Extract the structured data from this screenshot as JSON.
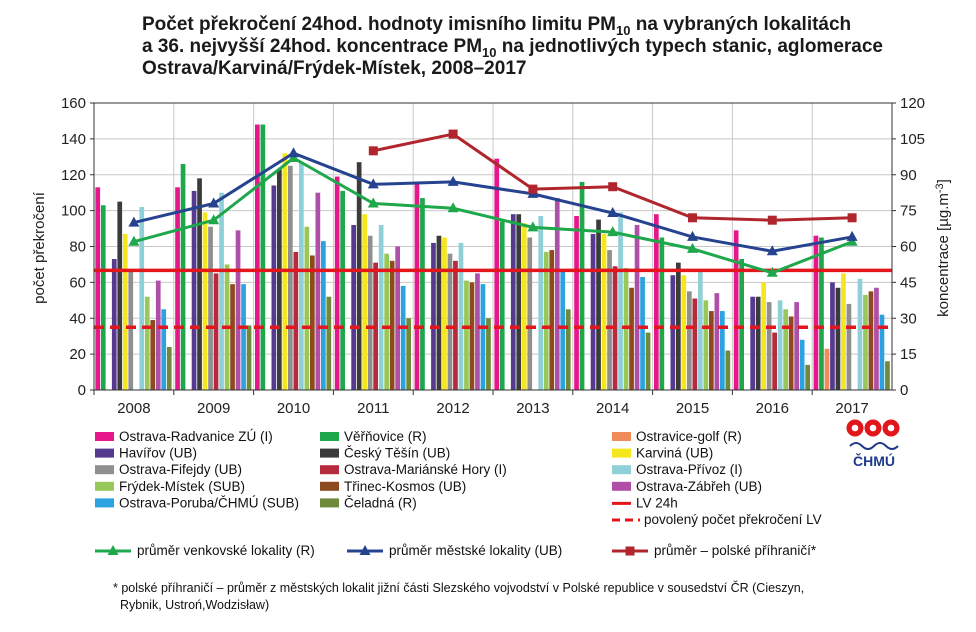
{
  "chart_data": {
    "type": "bar",
    "title_lines": [
      [
        "Počet překročení 24hod. hodnoty imisního limitu PM",
        "10",
        " na vybraných lokalitách"
      ],
      [
        "a 36. nejvyšší 24hod. koncentrace PM",
        "10",
        " na jednotlivých typech stanic, aglomerace"
      ],
      [
        "Ostrava/Karviná/Frýdek-Místek, 2008–2017",
        "",
        ""
      ]
    ],
    "ylabel": "počet překročení",
    "y2label": "koncentrace [µg.m-3]",
    "ylim": [
      0,
      160
    ],
    "y2lim": [
      0,
      120
    ],
    "yticks": [
      "0",
      "20",
      "40",
      "60",
      "80",
      "100",
      "120",
      "140",
      "160"
    ],
    "y2ticks": [
      "0",
      "15",
      "30",
      "45",
      "60",
      "75",
      "90",
      "105",
      "120"
    ],
    "categories": [
      "2008",
      "2009",
      "2010",
      "2011",
      "2012",
      "2013",
      "2014",
      "2015",
      "2016",
      "2017"
    ],
    "grid": true,
    "series": [
      {
        "name": "Ostrava-Radvanice ZÚ (I)",
        "color": "#e6178a",
        "values": [
          113,
          113,
          148,
          119,
          116,
          129,
          97,
          98,
          89,
          86
        ]
      },
      {
        "name": "Věřňovice (R)",
        "color": "#1ea84b",
        "values": [
          103,
          126,
          148,
          111,
          107,
          94,
          116,
          85,
          73,
          85
        ]
      },
      {
        "name": "Ostravice-golf (R)",
        "color": "#f28b5a",
        "values": [
          null,
          null,
          null,
          null,
          null,
          null,
          null,
          null,
          null,
          23
        ]
      },
      {
        "name": "Havířov (UB)",
        "color": "#553a8f",
        "values": [
          73,
          111,
          114,
          92,
          82,
          98,
          87,
          64,
          52,
          60
        ]
      },
      {
        "name": "Český Těšín (UB)",
        "color": "#3b3b3b",
        "values": [
          105,
          118,
          123,
          127,
          86,
          98,
          95,
          71,
          52,
          57
        ]
      },
      {
        "name": "Karviná (UB)",
        "color": "#f5e61e",
        "values": [
          87,
          99,
          132,
          98,
          85,
          93,
          87,
          64,
          60,
          65
        ]
      },
      {
        "name": "Ostrava-Fifejdy (UB)",
        "color": "#8f8f8f",
        "values": [
          66,
          91,
          125,
          86,
          76,
          85,
          78,
          55,
          49,
          48
        ]
      },
      {
        "name": "Ostrava-Mariánské Hory (I)",
        "color": "#b52a3c",
        "values": [
          null,
          65,
          77,
          71,
          72,
          null,
          69,
          51,
          32,
          null
        ]
      },
      {
        "name": "Ostrava-Přívoz (I)",
        "color": "#8fd0d8",
        "values": [
          102,
          110,
          127,
          92,
          82,
          97,
          99,
          66,
          50,
          62
        ]
      },
      {
        "name": "Frýdek-Místek (SUB)",
        "color": "#98c85a",
        "values": [
          52,
          70,
          91,
          76,
          61,
          77,
          68,
          50,
          45,
          53
        ]
      },
      {
        "name": "Třinec-Kosmos (UB)",
        "color": "#8b4b1f",
        "values": [
          39,
          59,
          75,
          72,
          60,
          78,
          57,
          44,
          41,
          55
        ]
      },
      {
        "name": "Ostrava-Zábřeh (UB)",
        "color": "#b04fa8",
        "values": [
          61,
          89,
          110,
          80,
          65,
          107,
          92,
          54,
          49,
          57
        ]
      },
      {
        "name": "Ostrava-Poruba/ČHMÚ (SUB)",
        "color": "#2aa3e0",
        "values": [
          45,
          59,
          83,
          58,
          59,
          66,
          63,
          44,
          28,
          42
        ]
      },
      {
        "name": "Čeladná (R)",
        "color": "#6e8a3a",
        "values": [
          24,
          36,
          52,
          40,
          40,
          45,
          32,
          22,
          14,
          16
        ]
      }
    ],
    "limit_lines": [
      {
        "name": "LV 24h",
        "color": "#e3161b",
        "style": "solid",
        "y2_value": 50
      },
      {
        "name": "povolený počet překročení LV",
        "color": "#e3161b",
        "style": "dashed",
        "y_value": 35
      }
    ],
    "line_series": [
      {
        "name": "průměr venkovské lokality (R)",
        "color": "#1ea84b",
        "marker": "triangle",
        "y2_values": [
          62,
          71,
          97,
          78,
          76,
          68,
          66,
          59,
          49,
          62
        ]
      },
      {
        "name": "průměr městské lokality (UB)",
        "color": "#25438f",
        "marker": "triangle",
        "y2_values": [
          70,
          78,
          99,
          86,
          87,
          82,
          74,
          64,
          58,
          64
        ]
      },
      {
        "name": "průměr – polské příhraničí*",
        "color": "#b0262c",
        "marker": "square",
        "y2_values": [
          null,
          null,
          null,
          100,
          107,
          84,
          85,
          72,
          71,
          72
        ]
      }
    ],
    "footnote_lines": [
      "* polské příhraničí – průměr z městských lokalit jižní části Slezského vojvodství v Polské republice v sousedství ČR (Cieszyn,",
      "Rybnik, Ustroń,Wodzisław)"
    ]
  },
  "logo": {
    "text": "ČHMÚ",
    "color": "#e3161b"
  }
}
